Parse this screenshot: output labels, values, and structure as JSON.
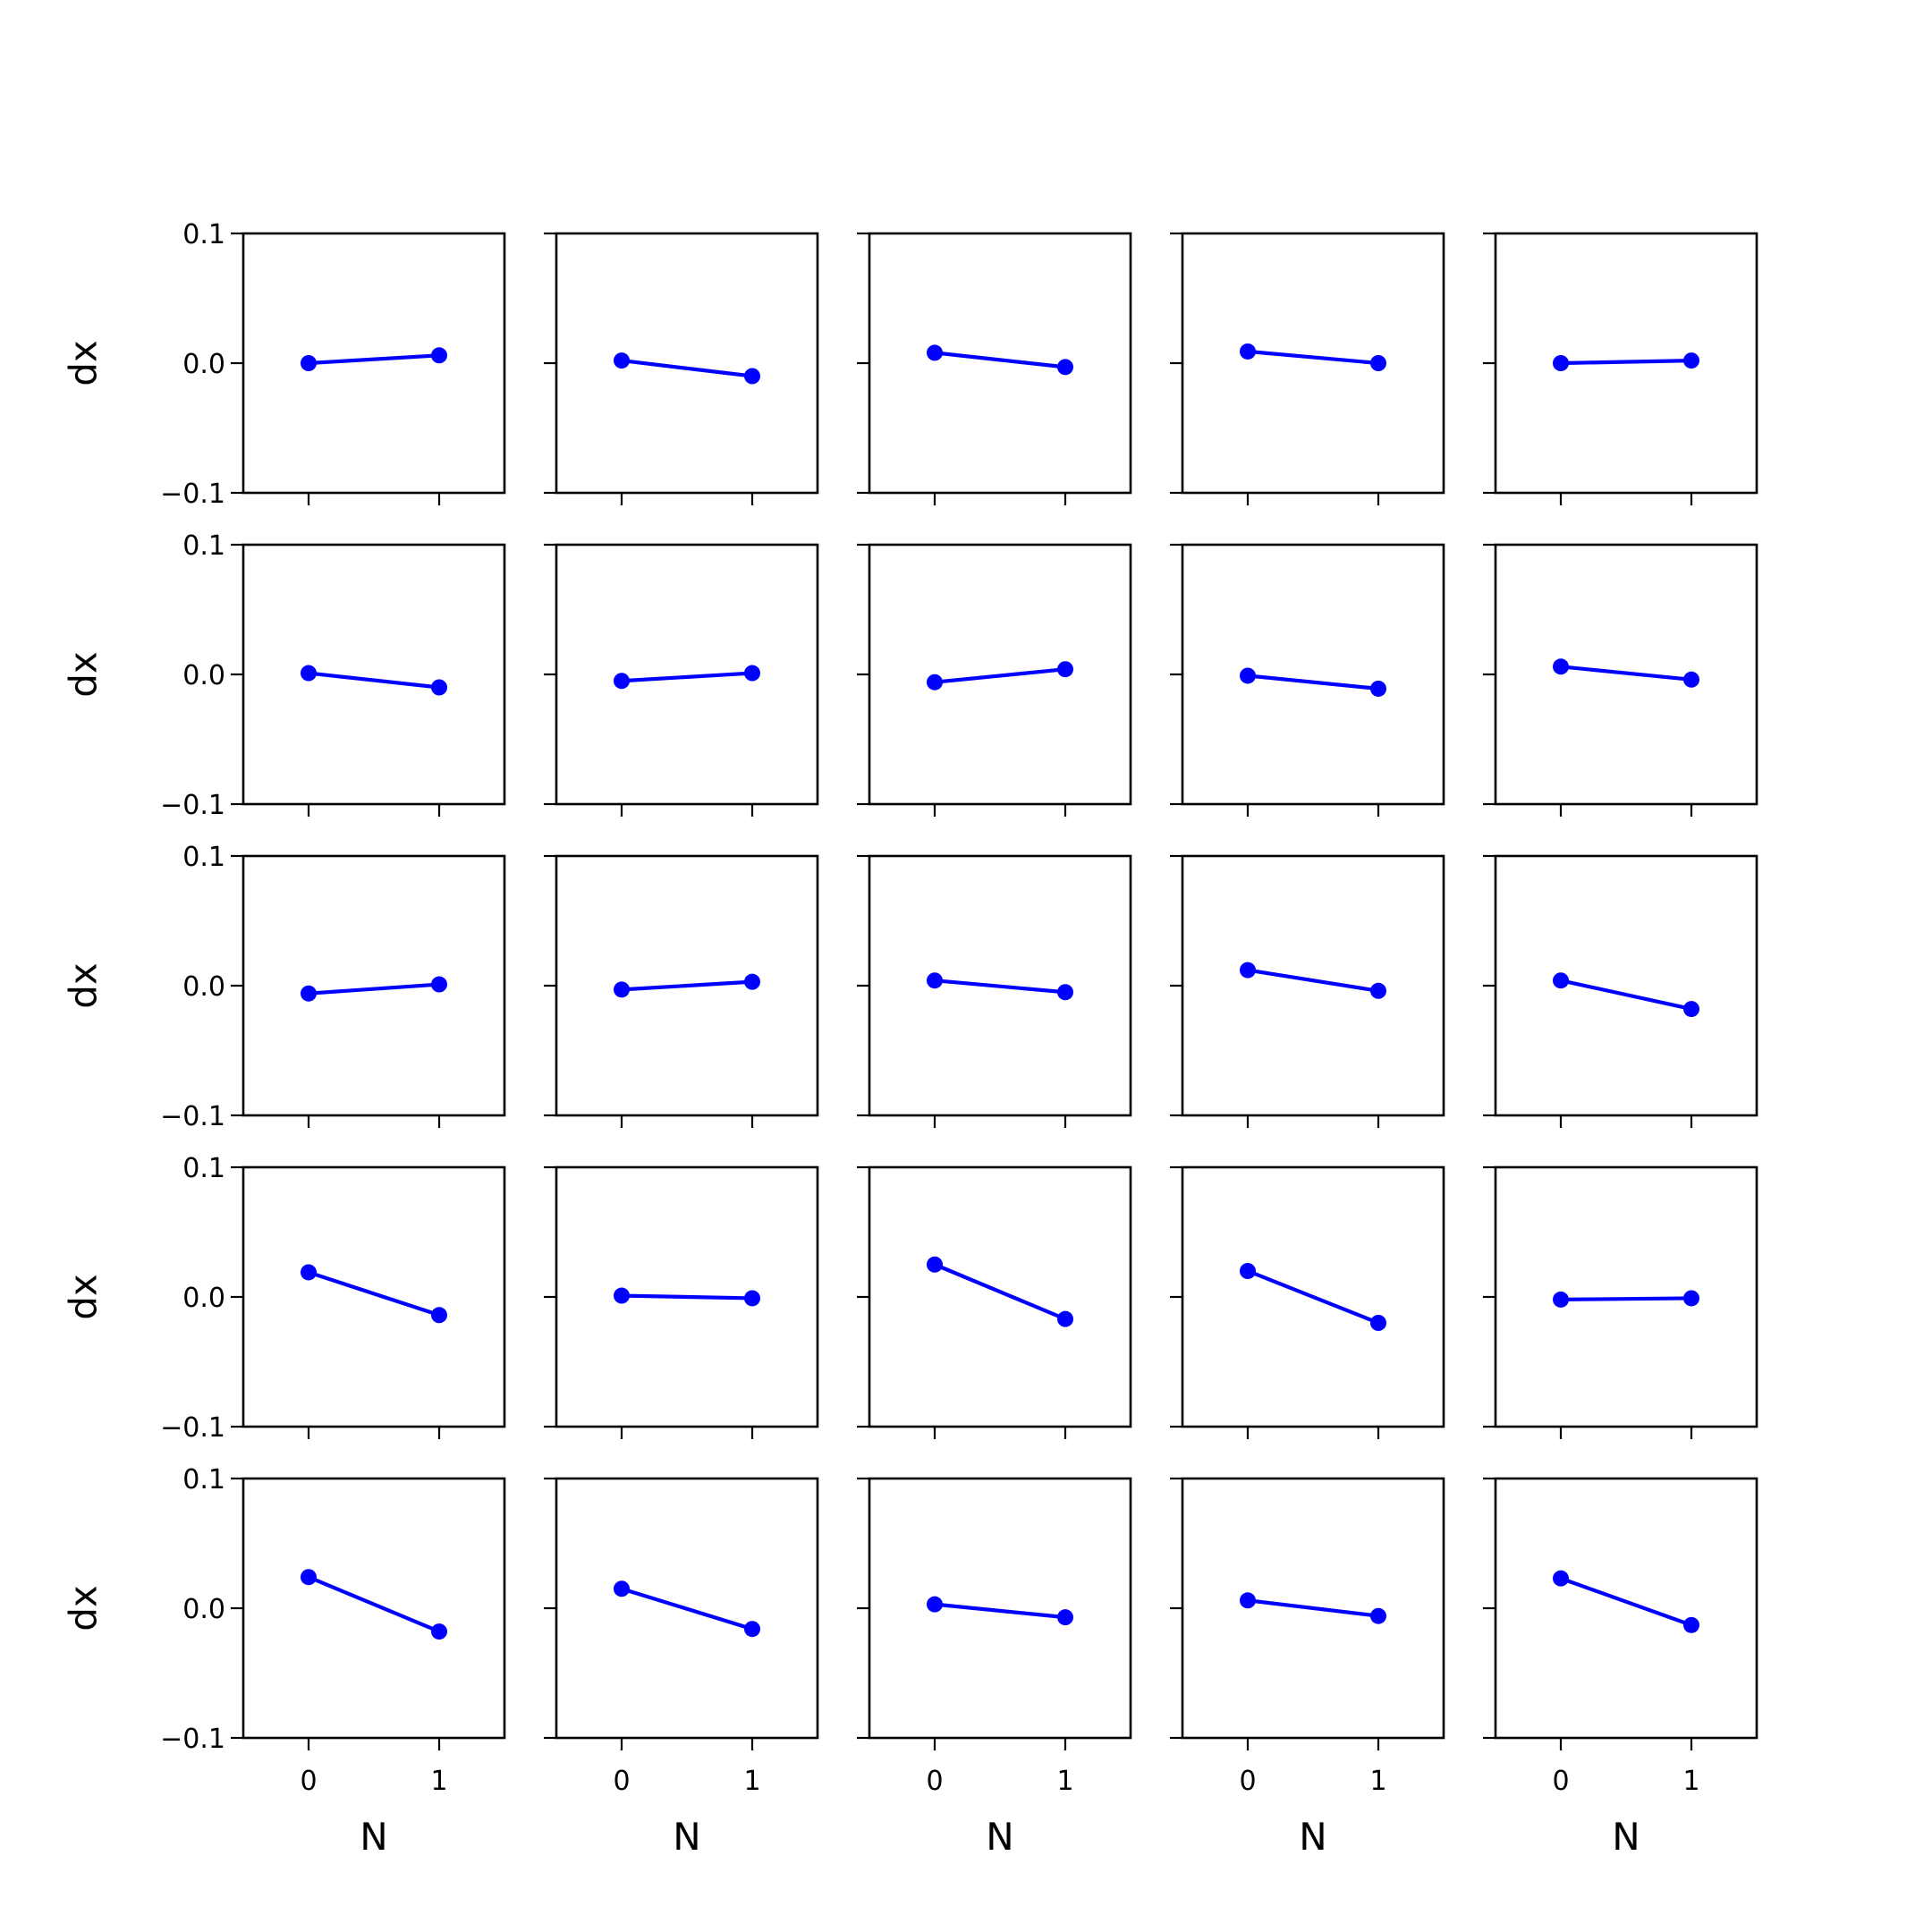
{
  "chart_data": {
    "type": "line",
    "layout": {
      "rows": 5,
      "cols": 5,
      "sharex": true,
      "sharey": true
    },
    "xlabel": "N",
    "ylabel": "dx",
    "xlim": [
      -0.5,
      1.5
    ],
    "ylim": [
      -0.1,
      0.1
    ],
    "xticks": [
      0,
      1
    ],
    "xtick_labels": [
      "0",
      "1"
    ],
    "yticks": [
      -0.1,
      0.0,
      0.1
    ],
    "ytick_labels": [
      "−0.1",
      "0.0",
      "0.1"
    ],
    "series_color": "#0000ff",
    "marker": "circle",
    "x": [
      0,
      1
    ],
    "panels": [
      {
        "y": [
          0.0,
          0.006
        ]
      },
      {
        "y": [
          0.002,
          -0.01
        ]
      },
      {
        "y": [
          0.008,
          -0.003
        ]
      },
      {
        "y": [
          0.009,
          0.0
        ]
      },
      {
        "y": [
          0.0,
          0.002
        ]
      },
      {
        "y": [
          0.001,
          -0.01
        ]
      },
      {
        "y": [
          -0.005,
          0.001
        ]
      },
      {
        "y": [
          -0.006,
          0.004
        ]
      },
      {
        "y": [
          -0.001,
          -0.011
        ]
      },
      {
        "y": [
          0.006,
          -0.004
        ]
      },
      {
        "y": [
          -0.006,
          0.001
        ]
      },
      {
        "y": [
          -0.003,
          0.003
        ]
      },
      {
        "y": [
          0.004,
          -0.005
        ]
      },
      {
        "y": [
          0.012,
          -0.004
        ]
      },
      {
        "y": [
          0.004,
          -0.018
        ]
      },
      {
        "y": [
          0.019,
          -0.014
        ]
      },
      {
        "y": [
          0.001,
          -0.001
        ]
      },
      {
        "y": [
          0.025,
          -0.017
        ]
      },
      {
        "y": [
          0.02,
          -0.02
        ]
      },
      {
        "y": [
          -0.002,
          -0.001
        ]
      },
      {
        "y": [
          0.024,
          -0.018
        ]
      },
      {
        "y": [
          0.015,
          -0.016
        ]
      },
      {
        "y": [
          0.003,
          -0.007
        ]
      },
      {
        "y": [
          0.006,
          -0.006
        ]
      },
      {
        "y": [
          0.023,
          -0.013
        ]
      }
    ]
  }
}
